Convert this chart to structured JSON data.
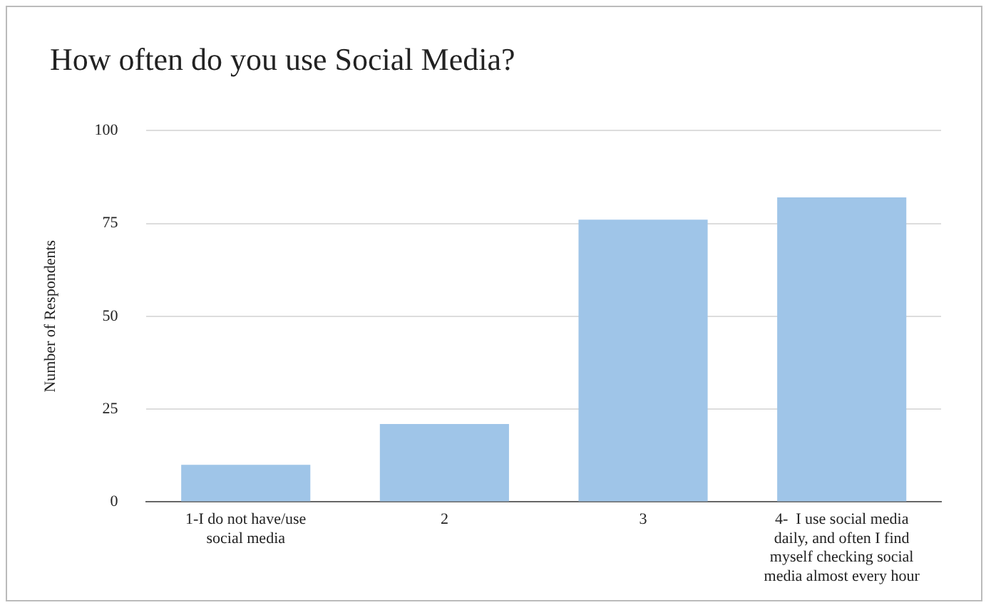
{
  "chart_data": {
    "type": "bar",
    "title": "How often do you use Social Media?",
    "ylabel": "Number of Respondents",
    "categories": [
      "1-I do not have/use social media",
      "2",
      "3",
      "4-  I use social media daily, and often I find myself checking social media almost every hour"
    ],
    "values": [
      10,
      21,
      76,
      82
    ],
    "color": "#9fc5e8",
    "ylim": [
      0,
      100
    ],
    "yticks": [
      0,
      25,
      50,
      75,
      100
    ],
    "grid": "y",
    "legend": false
  }
}
